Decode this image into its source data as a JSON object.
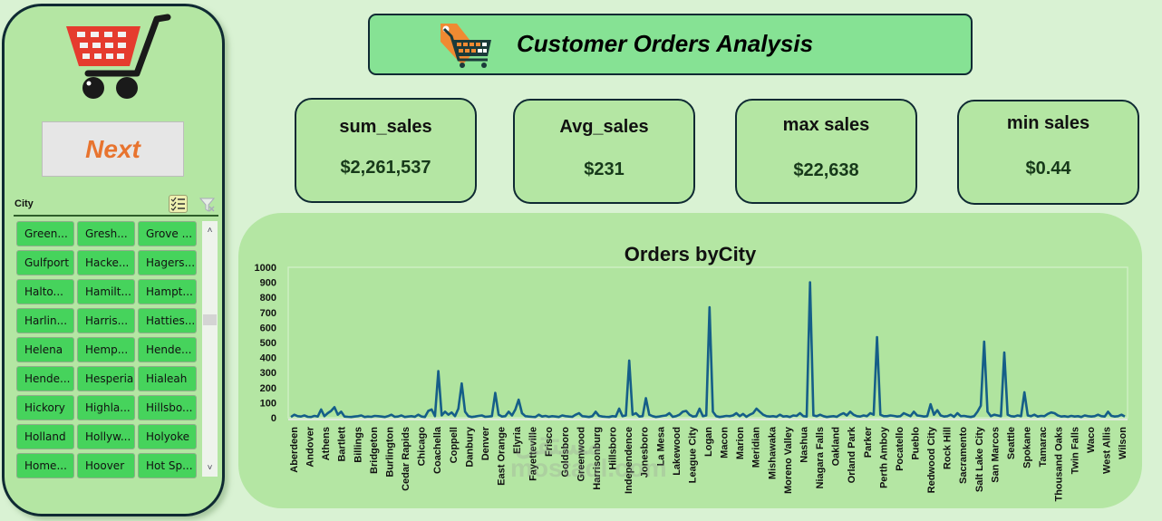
{
  "side_panel": {
    "logo_icon": "shopping-cart-icon",
    "next_button_label": "Next",
    "slicer": {
      "title": "City",
      "multi_select_icon": "multi-select-icon",
      "clear_filter_icon": "clear-filter-icon",
      "items": [
        "Green...",
        "Gresh...",
        "Grove ...",
        "Gulfport",
        "Hacke...",
        "Hagers...",
        "Halto...",
        "Hamilt...",
        "Hampt...",
        "Harlin...",
        "Harris...",
        "Hatties...",
        "Helena",
        "Hemp...",
        "Hende...",
        "Hende...",
        "Hesperia",
        "Hialeah",
        "Hickory",
        "Highla...",
        "Hillsbo...",
        "Holland",
        "Hollyw...",
        "Holyoke",
        "Home...",
        "Hoover",
        "Hot Sp..."
      ],
      "scroll_up_icon": "chevron-up-icon",
      "scroll_down_icon": "chevron-down-icon"
    }
  },
  "header": {
    "icon": "price-tag-cart-icon",
    "title": "Customer Orders Analysis"
  },
  "kpis": [
    {
      "label": "sum_sales",
      "value": "$2,261,537"
    },
    {
      "label": "Avg_sales",
      "value": "$231"
    },
    {
      "label": "max sales",
      "value": "$22,638"
    },
    {
      "label": "min sales",
      "value": "$0.44"
    }
  ],
  "colors": {
    "background": "#d9f2d3",
    "panel": "#b4e6a3",
    "header": "#86e294",
    "slicer_item": "#46d35c",
    "line": "#155e88",
    "next_text": "#e8742f",
    "border": "#0f2a33"
  },
  "watermark": "mostaql.com",
  "chart_data": {
    "type": "line",
    "title": "Orders byCity",
    "xlabel": "",
    "ylabel": "",
    "ylim": [
      0,
      1000
    ],
    "yticks": [
      0,
      100,
      200,
      300,
      400,
      500,
      600,
      700,
      800,
      900,
      1000
    ],
    "grid": false,
    "legend": "none",
    "tick_labels": [
      "Aberdeen",
      "Andover",
      "Athens",
      "Bartlett",
      "Billings",
      "Bridgeton",
      "Burlington",
      "Cedar Rapids",
      "Chicago",
      "Coachella",
      "Coppell",
      "Danbury",
      "Denver",
      "East Orange",
      "Elyria",
      "Fayetteville",
      "Frisco",
      "Goldsboro",
      "Greenwood",
      "Harrisonburg",
      "Hillsboro",
      "Independence",
      "Jonesboro",
      "La Mesa",
      "Lakewood",
      "League City",
      "Logan",
      "Macon",
      "Marion",
      "Meridian",
      "Mishawaka",
      "Moreno Valley",
      "Nashua",
      "Niagara Falls",
      "Oakland",
      "Orland Park",
      "Parker",
      "Perth Amboy",
      "Pocatello",
      "Pueblo",
      "Redwood City",
      "Rock Hill",
      "Sacramento",
      "Salt Lake City",
      "San Marcos",
      "Seattle",
      "Spokane",
      "Tamarac",
      "Thousand Oaks",
      "Twin Falls",
      "Waco",
      "West Allis",
      "Wilson"
    ],
    "series": [
      {
        "name": "Orders",
        "values": [
          5,
          20,
          10,
          8,
          15,
          6,
          5,
          12,
          8,
          55,
          10,
          30,
          45,
          70,
          20,
          40,
          8,
          6,
          5,
          8,
          10,
          15,
          5,
          8,
          6,
          12,
          10,
          8,
          5,
          10,
          20,
          6,
          8,
          15,
          5,
          8,
          10,
          6,
          20,
          8,
          5,
          45,
          55,
          10,
          310,
          15,
          40,
          20,
          35,
          10,
          60,
          228,
          40,
          10,
          5,
          8,
          12,
          15,
          6,
          8,
          10,
          165,
          20,
          8,
          10,
          40,
          15,
          55,
          120,
          30,
          10,
          8,
          6,
          5,
          20,
          8,
          12,
          6,
          10,
          8,
          5,
          15,
          10,
          8,
          6,
          20,
          30,
          10,
          8,
          5,
          10,
          40,
          12,
          8,
          6,
          5,
          10,
          8,
          60,
          10,
          15,
          380,
          20,
          30,
          8,
          10,
          130,
          20,
          10,
          5,
          8,
          12,
          15,
          30,
          6,
          10,
          20,
          40,
          45,
          20,
          8,
          10,
          60,
          10,
          15,
          735,
          40,
          10,
          5,
          8,
          12,
          10,
          15,
          30,
          10,
          25,
          6,
          20,
          30,
          60,
          40,
          20,
          10,
          8,
          10,
          6,
          20,
          8,
          10,
          5,
          15,
          12,
          30,
          10,
          8,
          900,
          15,
          10,
          20,
          10,
          5,
          8,
          10,
          6,
          20,
          30,
          15,
          40,
          20,
          10,
          8,
          15,
          10,
          30,
          20,
          536,
          20,
          10,
          10,
          15,
          12,
          8,
          10,
          30,
          20,
          10,
          40,
          15,
          12,
          8,
          10,
          90,
          20,
          50,
          15,
          8,
          10,
          20,
          6,
          30,
          10,
          12,
          8,
          5,
          10,
          40,
          80,
          506,
          40,
          10,
          20,
          15,
          10,
          434,
          20,
          10,
          8,
          15,
          10,
          169,
          15,
          10,
          20,
          8,
          12,
          10,
          25,
          35,
          30,
          15,
          8,
          10,
          6,
          12,
          8,
          10,
          5,
          15,
          10,
          8,
          10,
          20,
          10,
          8,
          40,
          12,
          8,
          10,
          20,
          8
        ]
      }
    ]
  }
}
